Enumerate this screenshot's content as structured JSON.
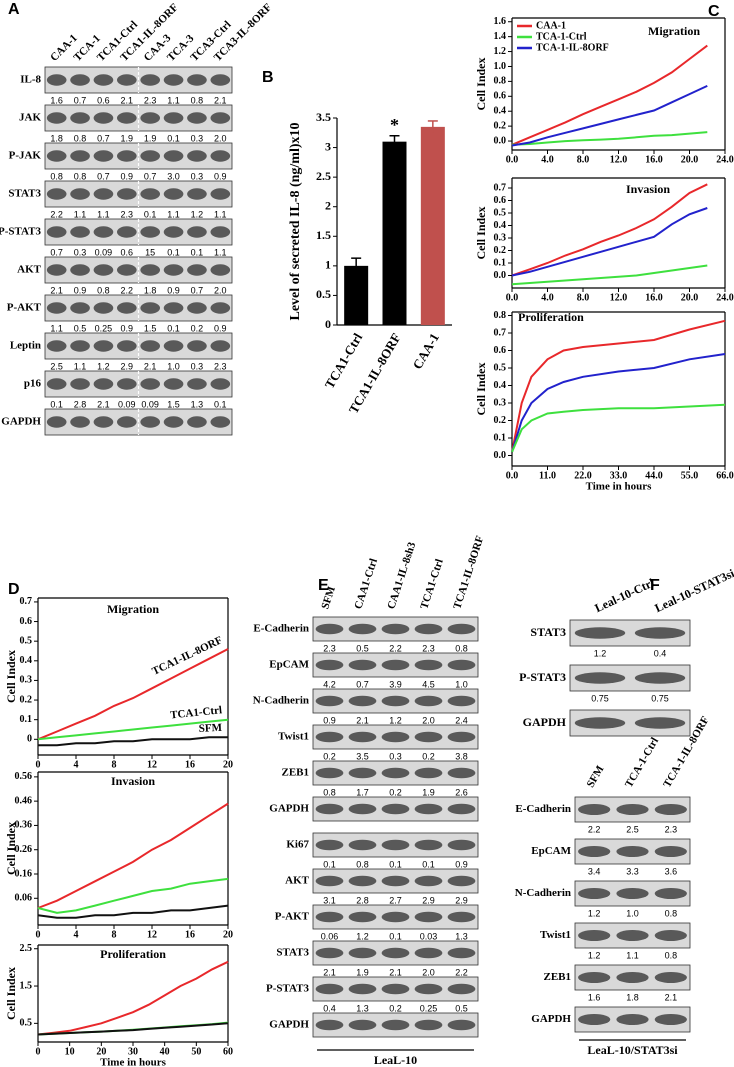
{
  "panels": [
    "A",
    "B",
    "C",
    "D",
    "E",
    "F"
  ],
  "blots": [
    {
      "lanes": [
        "CAA-1",
        "TCA-1",
        "TCA1-Ctrl",
        "TCA1-IL-8ORF",
        "CAA-3",
        "TCA-3",
        "TCA3-Ctrl",
        "TCA3-IL-8ORF"
      ],
      "rows": [
        {
          "label": "IL-8",
          "values": [
            "1.6",
            "0.7",
            "0.6",
            "2.1",
            "2.3",
            "1.1",
            "0.8",
            "2.1"
          ]
        },
        {
          "label": "JAK",
          "values": [
            "1.8",
            "0.8",
            "0.7",
            "1.9",
            "1.9",
            "0.1",
            "0.3",
            "2.0"
          ]
        },
        {
          "label": "P-JAK",
          "values": [
            "0.8",
            "0.8",
            "0.7",
            "0.9",
            "0.7",
            "3.0",
            "0.3",
            "0.9"
          ]
        },
        {
          "label": "STAT3",
          "values": [
            "2.2",
            "1.1",
            "1.1",
            "2.3",
            "0.1",
            "1.1",
            "1.2",
            "1.1"
          ]
        },
        {
          "label": "P-STAT3",
          "values": [
            "0.7",
            "0.3",
            "0.09",
            "0.6",
            "15",
            "0.1",
            "0.1",
            "1.1"
          ]
        },
        {
          "label": "AKT",
          "values": [
            "2.1",
            "0.9",
            "0.8",
            "2.2",
            "1.8",
            "0.9",
            "0.7",
            "2.0"
          ]
        },
        {
          "label": "P-AKT",
          "values": [
            "1.1",
            "0.5",
            "0.25",
            "0.9",
            "1.5",
            "0.1",
            "0.2",
            "0.9"
          ]
        },
        {
          "label": "Leptin",
          "values": [
            "2.5",
            "1.1",
            "1.2",
            "2.9",
            "2.1",
            "1.0",
            "0.3",
            "2.3"
          ]
        },
        {
          "label": "p16",
          "values": [
            "0.1",
            "2.8",
            "2.1",
            "0.09",
            "0.09",
            "1.5",
            "1.3",
            "0.1"
          ]
        },
        {
          "label": "GAPDH"
        }
      ]
    },
    {
      "lanes": [
        "SFM",
        "CAA1-Ctrl",
        "CAA1-IL-8sh3",
        "TCA1-Ctrl",
        "TCA1-IL-8ORF"
      ],
      "rows": [
        {
          "label": "E-Cadherin",
          "values": [
            "2.3",
            "0.5",
            "2.2",
            "2.3",
            "0.8"
          ]
        },
        {
          "label": "EpCAM",
          "values": [
            "4.2",
            "0.7",
            "3.9",
            "4.5",
            "1.0"
          ]
        },
        {
          "label": "N-Cadherin",
          "values": [
            "0.9",
            "2.1",
            "1.2",
            "2.0",
            "2.4"
          ]
        },
        {
          "label": "Twist1",
          "values": [
            "0.2",
            "3.5",
            "0.3",
            "0.2",
            "3.8"
          ]
        },
        {
          "label": "ZEB1",
          "values": [
            "0.8",
            "1.7",
            "0.2",
            "1.9",
            "2.6"
          ]
        },
        {
          "label": "GAPDH"
        },
        {
          "label": "Ki67",
          "values": [
            "0.1",
            "0.8",
            "0.1",
            "0.1",
            "0.9"
          ]
        },
        {
          "label": "AKT",
          "values": [
            "3.1",
            "2.8",
            "2.7",
            "2.9",
            "2.9"
          ]
        },
        {
          "label": "P-AKT",
          "values": [
            "0.06",
            "1.2",
            "0.1",
            "0.03",
            "1.3"
          ]
        },
        {
          "label": "STAT3",
          "values": [
            "2.1",
            "1.9",
            "2.1",
            "2.0",
            "2.2"
          ]
        },
        {
          "label": "P-STAT3",
          "values": [
            "0.4",
            "1.3",
            "0.2",
            "0.25",
            "0.5"
          ]
        },
        {
          "label": "GAPDH"
        }
      ],
      "footer": "LeaL-10"
    },
    {
      "lanes": [
        "Leal-10-Ctrl",
        "Leal-10-STAT3si"
      ],
      "rows": [
        {
          "label": "STAT3",
          "values": [
            "1.2",
            "0.4"
          ]
        },
        {
          "label": "P-STAT3",
          "values": [
            "0.75",
            "0.75"
          ]
        },
        {
          "label": "GAPDH"
        }
      ]
    },
    {
      "lanes": [
        "SFM",
        "TCA-1-Ctrl",
        "TCA-1-IL-8ORF"
      ],
      "rows": [
        {
          "label": "E-Cadherin",
          "values": [
            "2.2",
            "2.5",
            "2.3"
          ]
        },
        {
          "label": "EpCAM",
          "values": [
            "3.4",
            "3.3",
            "3.6"
          ]
        },
        {
          "label": "N-Cadherin",
          "values": [
            "1.2",
            "1.0",
            "0.8"
          ]
        },
        {
          "label": "Twist1",
          "values": [
            "1.2",
            "1.1",
            "0.8"
          ]
        },
        {
          "label": "ZEB1",
          "values": [
            "1.6",
            "1.8",
            "2.1"
          ]
        },
        {
          "label": "GAPDH"
        }
      ],
      "footer": "LeaL-10/STAT3si"
    }
  ],
  "chart_data": [
    {
      "type": "bar",
      "y_label": "Level of secreted IL-8 (ng/ml)x10",
      "categories": [
        "TCA1-Ctrl",
        "TCA1-IL-8ORF",
        "CAA-1"
      ],
      "values": [
        1.0,
        3.1,
        3.35
      ],
      "errors": [
        0.13,
        0.1,
        0.1
      ],
      "colors": [
        "#000000",
        "#000000",
        "#c0504d"
      ],
      "annotation": "*",
      "ylim": [
        0,
        3.5
      ],
      "yticks": [
        0,
        0.5,
        1,
        1.5,
        2,
        2.5,
        3,
        3.5
      ]
    },
    {
      "type": "line",
      "title": "Migration",
      "y_label": "Cell Index",
      "legend": "upper left",
      "x": [
        0,
        2,
        4,
        6,
        8,
        10,
        12,
        14,
        16,
        18,
        20,
        22
      ],
      "series": [
        {
          "name": "CAA-1",
          "color": "#e8282b",
          "values": [
            -0.05,
            0.05,
            0.15,
            0.25,
            0.36,
            0.46,
            0.56,
            0.66,
            0.78,
            0.92,
            1.1,
            1.28
          ]
        },
        {
          "name": "TCA-1-Ctrl",
          "color": "#3ee03e",
          "values": [
            -0.05,
            -0.04,
            -0.02,
            0,
            0.01,
            0.02,
            0.03,
            0.05,
            0.07,
            0.08,
            0.1,
            0.12
          ]
        },
        {
          "name": "TCA-1-IL-8ORF",
          "color": "#2222cc",
          "values": [
            -0.06,
            -0.02,
            0.05,
            0.11,
            0.17,
            0.23,
            0.29,
            0.35,
            0.41,
            0.52,
            0.63,
            0.74
          ]
        }
      ],
      "xlim": [
        0,
        24
      ],
      "xticks": [
        {
          "value": 0,
          "label": "0.0"
        },
        {
          "value": 4,
          "label": "4.0"
        },
        {
          "value": 8,
          "label": "8.0"
        },
        {
          "value": 12,
          "label": "12.0"
        },
        {
          "value": 16,
          "label": "16.0"
        },
        {
          "value": 20,
          "label": "20.0"
        },
        {
          "value": 24,
          "label": "24.0"
        }
      ],
      "ylim": [
        -0.12,
        1.65
      ],
      "yticks": [
        {
          "value": 0,
          "label": "0.0"
        },
        0.2,
        0.4,
        0.6,
        0.8,
        {
          "value": 1,
          "label": "1.0"
        },
        1.2,
        1.4,
        1.6
      ]
    },
    {
      "type": "line",
      "title": "Invasion",
      "y_label": "Cell Index",
      "x": [
        0,
        2,
        4,
        6,
        8,
        10,
        12,
        14,
        16,
        18,
        20,
        22
      ],
      "series": [
        {
          "color": "#e8282b",
          "values": [
            0,
            0.05,
            0.1,
            0.16,
            0.21,
            0.27,
            0.32,
            0.38,
            0.45,
            0.55,
            0.66,
            0.73
          ]
        },
        {
          "color": "#3ee03e",
          "values": [
            -0.07,
            -0.06,
            -0.05,
            -0.04,
            -0.03,
            -0.02,
            -0.01,
            0,
            0.02,
            0.04,
            0.06,
            0.08
          ]
        },
        {
          "color": "#2222cc",
          "values": [
            0,
            0.03,
            0.07,
            0.11,
            0.15,
            0.19,
            0.23,
            0.27,
            0.31,
            0.41,
            0.49,
            0.54
          ]
        }
      ],
      "xlim": [
        0,
        24
      ],
      "xticks": [
        {
          "value": 0,
          "label": "0.0"
        },
        {
          "value": 4,
          "label": "4.0"
        },
        {
          "value": 8,
          "label": "8.0"
        },
        {
          "value": 12,
          "label": "12.0"
        },
        {
          "value": 16,
          "label": "16.0"
        },
        {
          "value": 20,
          "label": "20.0"
        },
        {
          "value": 24,
          "label": "24.0"
        }
      ],
      "ylim": [
        -0.1,
        0.78
      ],
      "yticks": [
        {
          "value": 0,
          "label": "0.0"
        },
        0.1,
        0.2,
        0.3,
        0.4,
        0.5,
        0.6,
        0.7
      ]
    },
    {
      "type": "line",
      "title": "Proliferation",
      "y_label": "Cell Index",
      "x_label": "Time in hours",
      "x": [
        0,
        3,
        6,
        11,
        16,
        22,
        33,
        44,
        55,
        66
      ],
      "series": [
        {
          "color": "#e8282b",
          "values": [
            0.02,
            0.3,
            0.45,
            0.55,
            0.6,
            0.62,
            0.64,
            0.66,
            0.72,
            0.77
          ]
        },
        {
          "color": "#2222cc",
          "values": [
            0.02,
            0.2,
            0.3,
            0.38,
            0.42,
            0.45,
            0.48,
            0.5,
            0.55,
            0.58
          ]
        },
        {
          "color": "#3ee03e",
          "values": [
            0.02,
            0.15,
            0.2,
            0.24,
            0.25,
            0.26,
            0.27,
            0.27,
            0.28,
            0.29
          ]
        }
      ],
      "xlim": [
        0,
        66
      ],
      "xticks": [
        {
          "value": 0,
          "label": "0.0"
        },
        {
          "value": 11,
          "label": "11.0"
        },
        {
          "value": 22,
          "label": "22.0"
        },
        {
          "value": 33,
          "label": "33.0"
        },
        {
          "value": 44,
          "label": "44.0"
        },
        {
          "value": 55,
          "label": "55.0"
        },
        {
          "value": 66,
          "label": "66.0"
        }
      ],
      "ylim": [
        -0.06,
        0.82
      ],
      "yticks": [
        {
          "value": 0,
          "label": "0.0"
        },
        0.1,
        0.2,
        0.3,
        0.4,
        0.5,
        0.6,
        0.7,
        0.8
      ]
    },
    {
      "type": "line",
      "title": "Migration",
      "y_label": "Cell Index",
      "legend": "inline",
      "x": [
        0,
        2,
        4,
        6,
        8,
        10,
        12,
        14,
        16,
        18,
        20
      ],
      "series": [
        {
          "name": "TCA1-IL-8ORF",
          "color": "#e8282b",
          "values": [
            0,
            0.04,
            0.08,
            0.12,
            0.17,
            0.21,
            0.26,
            0.31,
            0.36,
            0.41,
            0.46
          ]
        },
        {
          "name": "TCA1-Ctrl",
          "color": "#3ee03e",
          "values": [
            0,
            0.01,
            0.02,
            0.03,
            0.04,
            0.05,
            0.06,
            0.07,
            0.08,
            0.09,
            0.1
          ]
        },
        {
          "name": "SFM",
          "color": "#111111",
          "values": [
            -0.03,
            -0.03,
            -0.02,
            -0.02,
            -0.01,
            -0.01,
            0,
            0,
            0,
            0.01,
            0.01
          ]
        }
      ],
      "xlim": [
        0,
        20
      ],
      "xticks": [
        0,
        4,
        8,
        12,
        16,
        20
      ],
      "ylim": [
        -0.08,
        0.72
      ],
      "yticks": [
        0,
        0.1,
        0.2,
        0.3,
        0.4,
        0.5,
        0.6,
        0.7
      ]
    },
    {
      "type": "line",
      "title": "Invasion",
      "y_label": "Cell Index",
      "x": [
        0,
        2,
        4,
        6,
        8,
        10,
        12,
        14,
        16,
        18,
        20
      ],
      "series": [
        {
          "color": "#e8282b",
          "values": [
            0.02,
            0.05,
            0.09,
            0.13,
            0.17,
            0.21,
            0.26,
            0.3,
            0.35,
            0.4,
            0.45
          ]
        },
        {
          "color": "#3ee03e",
          "values": [
            0.02,
            0,
            0.01,
            0.03,
            0.05,
            0.07,
            0.09,
            0.1,
            0.12,
            0.13,
            0.14
          ]
        },
        {
          "color": "#111111",
          "values": [
            -0.01,
            -0.02,
            -0.02,
            -0.01,
            -0.01,
            0,
            0,
            0.01,
            0.01,
            0.02,
            0.03
          ]
        }
      ],
      "xlim": [
        0,
        20
      ],
      "xticks": [
        0,
        4,
        8,
        12,
        16,
        20
      ],
      "ylim": [
        -0.05,
        0.58
      ],
      "yticks": [
        0.06,
        0.16,
        0.26,
        0.36,
        0.46,
        0.56
      ]
    },
    {
      "type": "line",
      "title": "Proliferation",
      "y_label": "Cell Index",
      "x_label": "Time in hours",
      "x": [
        0,
        5,
        10,
        15,
        20,
        25,
        30,
        35,
        40,
        45,
        50,
        55,
        60
      ],
      "series": [
        {
          "color": "#e8282b",
          "values": [
            0.2,
            0.25,
            0.3,
            0.4,
            0.5,
            0.65,
            0.8,
            1.0,
            1.25,
            1.5,
            1.7,
            1.95,
            2.15
          ]
        },
        {
          "color": "#3ee03e",
          "values": [
            0.2,
            0.22,
            0.24,
            0.26,
            0.28,
            0.3,
            0.33,
            0.36,
            0.39,
            0.42,
            0.45,
            0.48,
            0.52
          ]
        },
        {
          "color": "#111111",
          "values": [
            0.2,
            0.22,
            0.24,
            0.26,
            0.28,
            0.3,
            0.32,
            0.35,
            0.38,
            0.41,
            0.44,
            0.47,
            0.5
          ]
        }
      ],
      "xlim": [
        0,
        60
      ],
      "xticks": [
        0,
        10,
        20,
        30,
        40,
        50,
        60
      ],
      "ylim": [
        0,
        2.6
      ],
      "yticks": [
        0.5,
        1.5,
        2.5
      ]
    }
  ]
}
